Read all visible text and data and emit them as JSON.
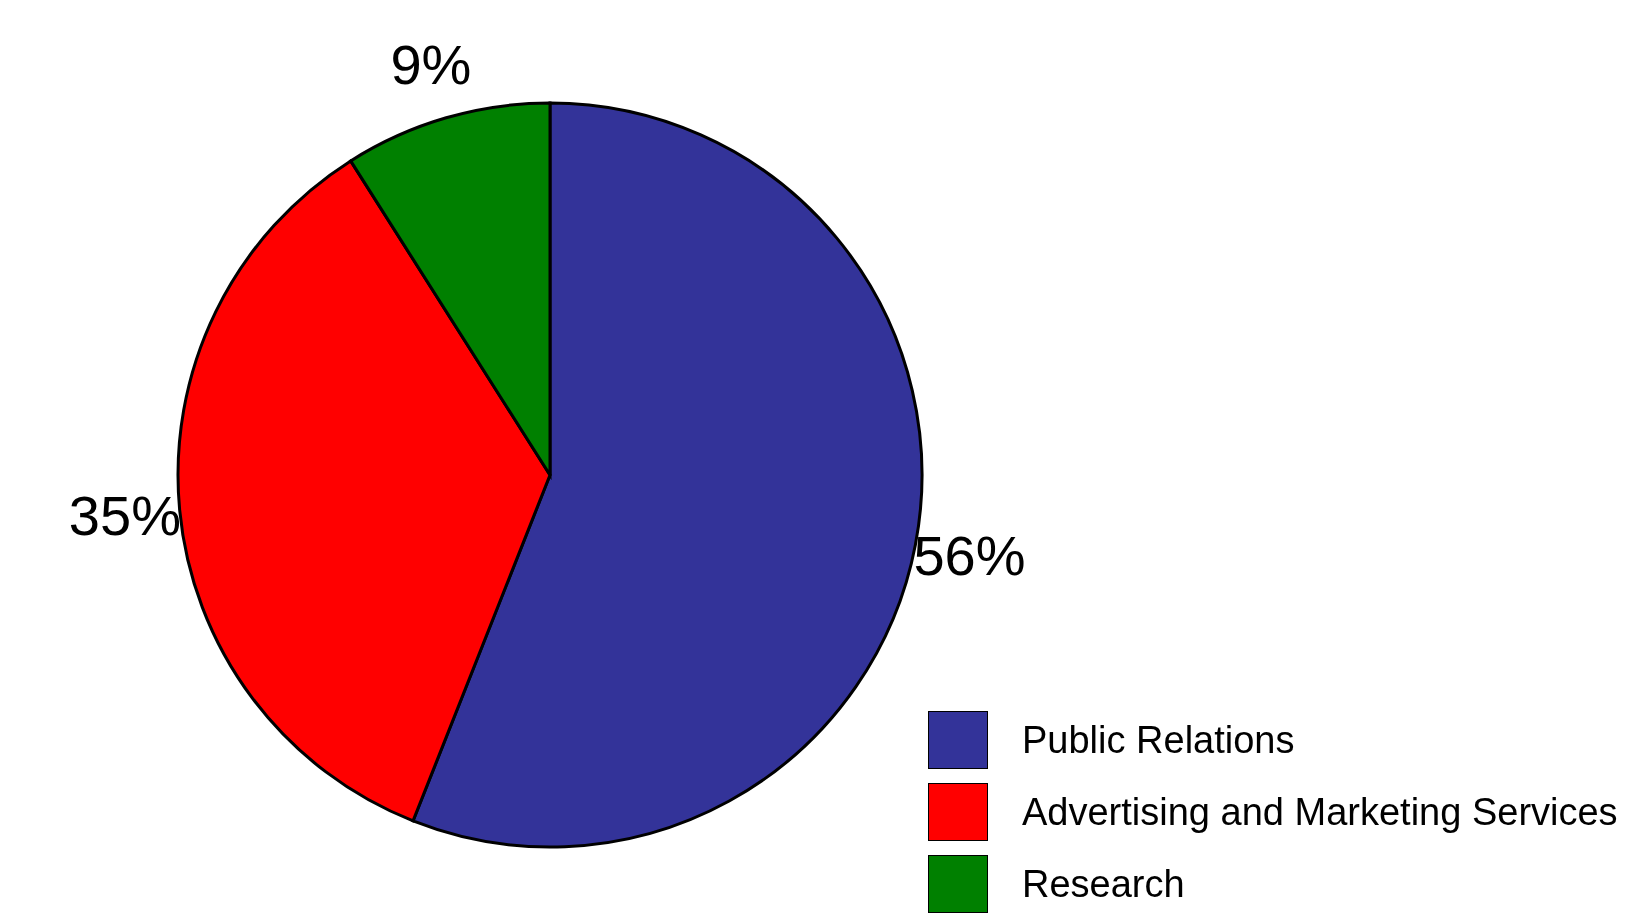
{
  "chart_data": {
    "type": "pie",
    "categories": [
      "Public Relations",
      "Advertising and Marketing Services",
      "Research"
    ],
    "values": [
      56,
      35,
      9
    ],
    "colors": [
      "#333399",
      "#ff0000",
      "#008000"
    ],
    "value_labels": [
      "56%",
      "35%",
      "9%"
    ],
    "legend": "bottom right"
  }
}
